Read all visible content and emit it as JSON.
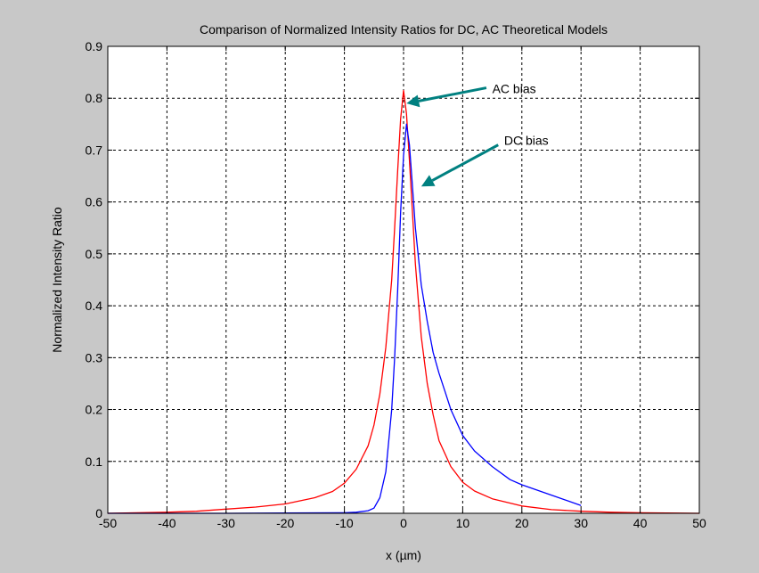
{
  "window": {
    "background": "#c8c8c8"
  },
  "chart_data": {
    "type": "line",
    "title": "Comparison of Normalized Intensity Ratios for DC, AC Theoretical Models",
    "xlabel": "x (µm)",
    "ylabel": "Normalized Intensity Ratio",
    "xlim": [
      -50,
      50
    ],
    "ylim": [
      0,
      0.9
    ],
    "xticks": [
      -50,
      -40,
      -30,
      -20,
      -10,
      0,
      10,
      20,
      30,
      40,
      50
    ],
    "yticks": [
      0,
      0.1,
      0.2,
      0.3,
      0.4,
      0.5,
      0.6,
      0.7,
      0.8,
      0.9
    ],
    "ytick_labels": [
      "0",
      "0.1",
      "0.2",
      "0.3",
      "0.4",
      "0.5",
      "0.6",
      "0.7",
      "0.8",
      "0.9"
    ],
    "grid": true,
    "series": [
      {
        "name": "AC bias",
        "color": "#ff0000",
        "x": [
          -50,
          -40,
          -35,
          -30,
          -25,
          -20,
          -15,
          -12,
          -10,
          -8,
          -6,
          -5,
          -4,
          -3,
          -2,
          -1.5,
          -1,
          -0.5,
          0,
          0.5,
          1,
          1.5,
          2,
          3,
          4,
          5,
          6,
          8,
          10,
          12,
          15,
          20,
          25,
          30,
          35,
          40,
          50
        ],
        "y": [
          0.0,
          0.002,
          0.004,
          0.008,
          0.012,
          0.018,
          0.03,
          0.042,
          0.058,
          0.085,
          0.13,
          0.17,
          0.23,
          0.32,
          0.45,
          0.55,
          0.66,
          0.76,
          0.815,
          0.77,
          0.68,
          0.58,
          0.48,
          0.34,
          0.25,
          0.19,
          0.14,
          0.09,
          0.06,
          0.043,
          0.028,
          0.014,
          0.007,
          0.004,
          0.002,
          0.001,
          0.0
        ]
      },
      {
        "name": "DC bias",
        "color": "#0000ff",
        "x": [
          -50,
          -30,
          -20,
          -10,
          -8,
          -6,
          -5,
          -4,
          -3,
          -2,
          -1.5,
          -1,
          -0.5,
          0,
          0.5,
          1,
          1.5,
          2,
          3,
          4,
          5,
          6,
          7,
          8,
          10,
          12,
          15,
          18,
          20,
          25,
          30
        ],
        "y": [
          0.0,
          0.0,
          0.0005,
          0.001,
          0.002,
          0.005,
          0.01,
          0.03,
          0.08,
          0.2,
          0.3,
          0.43,
          0.58,
          0.69,
          0.75,
          0.71,
          0.63,
          0.55,
          0.44,
          0.37,
          0.31,
          0.27,
          0.235,
          0.2,
          0.15,
          0.12,
          0.09,
          0.065,
          0.055,
          0.035,
          0.015
        ]
      }
    ],
    "annotations": [
      {
        "text": "AC bias",
        "x": 15,
        "y": 0.81,
        "arrow_from": [
          14,
          0.82
        ],
        "arrow_to": [
          0.5,
          0.79
        ],
        "color": "#008080"
      },
      {
        "text": "DC bias",
        "x": 17,
        "y": 0.71,
        "arrow_from": [
          16,
          0.71
        ],
        "arrow_to": [
          3,
          0.63
        ],
        "color": "#008080"
      }
    ]
  }
}
